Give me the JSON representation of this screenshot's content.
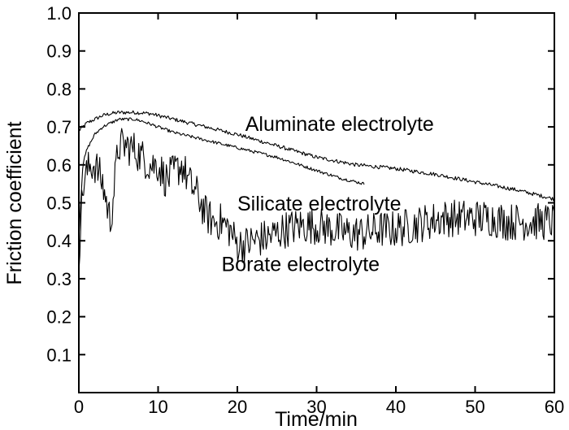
{
  "chart_data": {
    "type": "line",
    "xlabel": "Time/min",
    "ylabel": "Friction coefficient",
    "xlim": [
      0,
      60
    ],
    "ylim": [
      0,
      1.0
    ],
    "x_ticks": [
      0,
      10,
      20,
      30,
      40,
      50,
      60
    ],
    "y_ticks": [
      0.1,
      0.2,
      0.3,
      0.4,
      0.5,
      0.6,
      0.7,
      0.8,
      0.9,
      1.0
    ],
    "x_tick_labels": [
      "0",
      "10",
      "20",
      "30",
      "40",
      "50",
      "60"
    ],
    "y_tick_labels": [
      "0.1",
      "0.2",
      "0.3",
      "0.4",
      "0.5",
      "0.6",
      "0.7",
      "0.8",
      "0.9",
      "1.0"
    ],
    "grid": false,
    "legend": "none",
    "annotations": [
      {
        "text": "Aluminate electrolyte",
        "x": 21,
        "y": 0.69
      },
      {
        "text": "Silicate electrolyte",
        "x": 20,
        "y": 0.48
      },
      {
        "text": "Borate electrolyte",
        "x": 18,
        "y": 0.32
      }
    ],
    "series": [
      {
        "label_ref": "Aluminate electrolyte",
        "noise": 0.005,
        "x": [
          0,
          0.5,
          1,
          2,
          3,
          4,
          5,
          6,
          7,
          8,
          9,
          10,
          12,
          15,
          20,
          25,
          30,
          35,
          40,
          45,
          50,
          55,
          60
        ],
        "y": [
          0.69,
          0.7,
          0.71,
          0.72,
          0.73,
          0.735,
          0.738,
          0.738,
          0.738,
          0.737,
          0.735,
          0.73,
          0.72,
          0.705,
          0.68,
          0.65,
          0.62,
          0.6,
          0.59,
          0.575,
          0.555,
          0.535,
          0.51
        ]
      },
      {
        "label_ref": "Silicate electrolyte",
        "noise": 0.004,
        "x": [
          0,
          0.5,
          1,
          2,
          3,
          4,
          5,
          6,
          7,
          8,
          10,
          12,
          15,
          18,
          20,
          25,
          30,
          33,
          36
        ],
        "y": [
          0.41,
          0.6,
          0.64,
          0.68,
          0.7,
          0.71,
          0.72,
          0.72,
          0.72,
          0.715,
          0.7,
          0.685,
          0.67,
          0.655,
          0.645,
          0.62,
          0.585,
          0.565,
          0.55
        ]
      },
      {
        "label_ref": "Borate electrolyte",
        "noise": 0.05,
        "x": [
          0,
          0.3,
          0.6,
          1,
          1.5,
          2,
          2.5,
          3,
          3.5,
          4,
          4.5,
          5,
          6,
          7,
          8,
          9,
          10,
          11,
          12,
          13,
          14,
          15,
          16,
          17,
          18,
          19,
          20,
          21,
          22,
          24,
          26,
          28,
          30,
          32,
          34,
          36,
          38,
          40,
          42,
          44,
          46,
          48,
          50,
          52,
          54,
          56,
          58,
          60
        ],
        "y": [
          0.36,
          0.48,
          0.55,
          0.58,
          0.6,
          0.6,
          0.58,
          0.55,
          0.5,
          0.45,
          0.55,
          0.65,
          0.65,
          0.64,
          0.62,
          0.6,
          0.6,
          0.56,
          0.58,
          0.6,
          0.55,
          0.52,
          0.47,
          0.45,
          0.45,
          0.43,
          0.39,
          0.39,
          0.4,
          0.41,
          0.43,
          0.44,
          0.44,
          0.43,
          0.42,
          0.42,
          0.43,
          0.43,
          0.44,
          0.45,
          0.46,
          0.46,
          0.46,
          0.46,
          0.45,
          0.45,
          0.45,
          0.45
        ]
      }
    ]
  }
}
